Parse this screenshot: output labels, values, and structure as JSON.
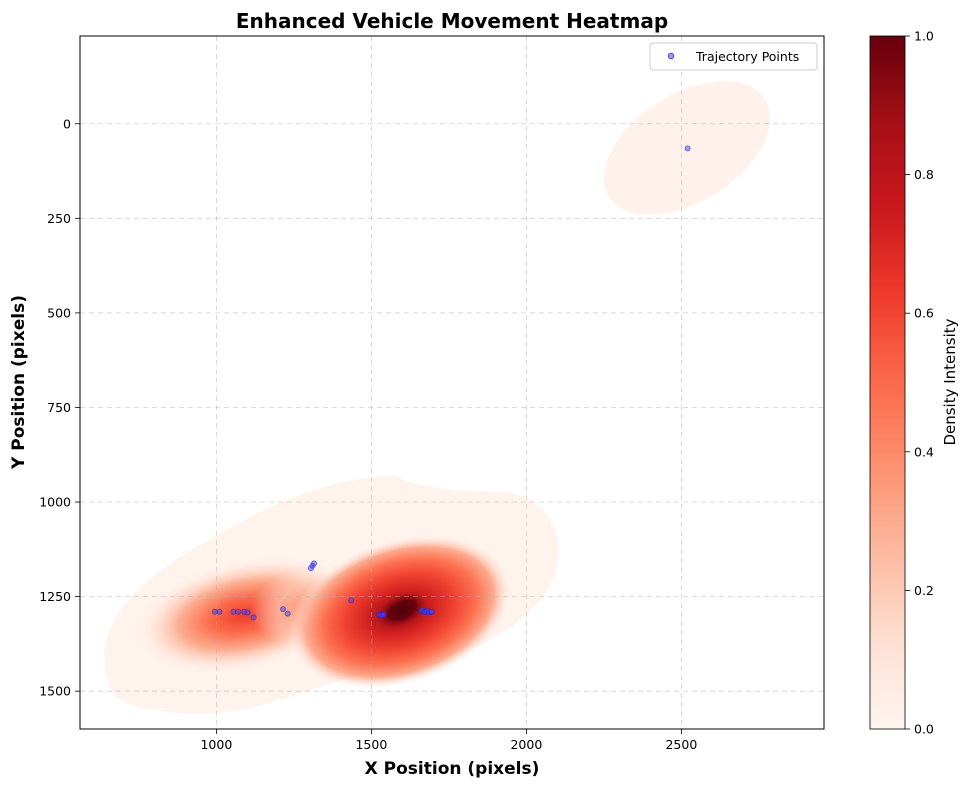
{
  "chart_data": {
    "type": "heatmap",
    "title": "Enhanced Vehicle Movement Heatmap",
    "xlabel": "X Position (pixels)",
    "ylabel": "Y Position (pixels)",
    "xlim": [
      560,
      2960
    ],
    "ylim": [
      1600,
      -232
    ],
    "y_inverted": true,
    "x_ticks": [
      1000,
      1500,
      2000,
      2500
    ],
    "y_ticks": [
      0,
      250,
      500,
      750,
      1000,
      1250,
      1500
    ],
    "grid": true,
    "legend": {
      "position": "top-right",
      "entries": [
        "Trajectory Points"
      ]
    },
    "colorbar": {
      "label": "Density Intensity",
      "range": [
        0.0,
        1.0
      ],
      "ticks": [
        "0.0",
        "0.2",
        "0.4",
        "0.6",
        "0.8",
        "1.0"
      ],
      "colormap": "Reds"
    },
    "density_clusters": [
      {
        "cx": 1600,
        "cy": 1290,
        "intensity": 1.0
      },
      {
        "cx": 1090,
        "cy": 1280,
        "intensity": 0.42
      },
      {
        "cx": 2450,
        "cy": 60,
        "intensity": 0.04
      }
    ],
    "series": [
      {
        "name": "Trajectory Points",
        "color": "#4444ee",
        "points": [
          [
            995,
            1290
          ],
          [
            1010,
            1290
          ],
          [
            1055,
            1290
          ],
          [
            1070,
            1290
          ],
          [
            1090,
            1290
          ],
          [
            1100,
            1292
          ],
          [
            1120,
            1305
          ],
          [
            1215,
            1283
          ],
          [
            1230,
            1295
          ],
          [
            1305,
            1175
          ],
          [
            1310,
            1168
          ],
          [
            1315,
            1162
          ],
          [
            1435,
            1260
          ],
          [
            1525,
            1298
          ],
          [
            1530,
            1298
          ],
          [
            1535,
            1300
          ],
          [
            1540,
            1297
          ],
          [
            1660,
            1288
          ],
          [
            1665,
            1285
          ],
          [
            1670,
            1290
          ],
          [
            1675,
            1290
          ],
          [
            1680,
            1288
          ],
          [
            1685,
            1292
          ],
          [
            1690,
            1290
          ],
          [
            1695,
            1290
          ],
          [
            2520,
            65
          ]
        ]
      }
    ]
  }
}
